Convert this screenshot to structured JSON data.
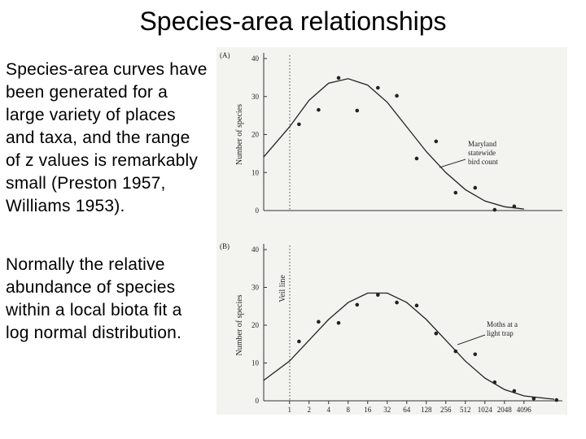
{
  "title": "Species-area relationships",
  "paragraphs": [
    "Species-area curves have been generated for a large variety of places and taxa, and the range of z values is remarkably small (Preston 1957, Williams 1953).",
    "Normally the relative abundance of species within a local biota fit a log normal distribution."
  ],
  "chart_data": [
    {
      "type": "scatter",
      "panel_label": "(A)",
      "y_label": "Number of species",
      "annotation": [
        "Maryland",
        "statewide",
        "bird count"
      ],
      "xlim": [
        0.4,
        16000
      ],
      "x_log_base": 2,
      "ylim": [
        0,
        40
      ],
      "yticks": [
        0,
        10,
        20,
        30,
        40
      ],
      "series": [
        {
          "color": "#222",
          "mode": "markers",
          "x": [
            1.4,
            2.8,
            5.7,
            11,
            23,
            45,
            91,
            181,
            362,
            724,
            1448,
            2896
          ],
          "values": [
            22.7,
            26.5,
            34.9,
            26.3,
            32.3,
            30.2,
            13.7,
            18.2,
            4.7,
            6.0,
            0.2,
            1.1
          ]
        },
        {
          "color": "#222",
          "mode": "line",
          "x": [
            0.4,
            1,
            2,
            4,
            8,
            16,
            32,
            64,
            128,
            256,
            512,
            1024,
            2048,
            4096
          ],
          "values": [
            14.1,
            22,
            29,
            33.5,
            34.7,
            33,
            28.5,
            22,
            15.5,
            10,
            5.5,
            2.5,
            1,
            0.4
          ]
        }
      ]
    },
    {
      "type": "scatter",
      "panel_label": "(B)",
      "y_label": "Number of species",
      "annotation": [
        "Moths at a",
        "light trap"
      ],
      "reference_line_label": "Veil line",
      "xlim": [
        0.4,
        16000
      ],
      "x_log_base": 2,
      "ylim": [
        0,
        40
      ],
      "yticks": [
        0,
        10,
        20,
        30,
        40
      ],
      "xticks": [
        1,
        2,
        4,
        8,
        16,
        32,
        64,
        128,
        256,
        512,
        1024,
        2048,
        4096
      ],
      "series": [
        {
          "color": "#222",
          "mode": "markers",
          "x": [
            1.4,
            2.8,
            5.7,
            11,
            23,
            45,
            91,
            181,
            362,
            724,
            1448,
            2896,
            5793,
            13000
          ],
          "values": [
            15.7,
            20.9,
            20.6,
            25.4,
            28,
            26,
            25.2,
            17.8,
            13.1,
            12.3,
            4.9,
            2.6,
            0.6,
            0.2
          ]
        },
        {
          "color": "#222",
          "mode": "line",
          "x": [
            0.4,
            1,
            2,
            4,
            8,
            16,
            32,
            64,
            128,
            256,
            512,
            1024,
            2048,
            4096,
            12000
          ],
          "values": [
            5.4,
            10.5,
            16,
            21.5,
            26,
            28.5,
            28.5,
            26,
            21.5,
            16,
            10.5,
            6,
            3,
            1.3,
            0.4
          ]
        }
      ]
    }
  ]
}
